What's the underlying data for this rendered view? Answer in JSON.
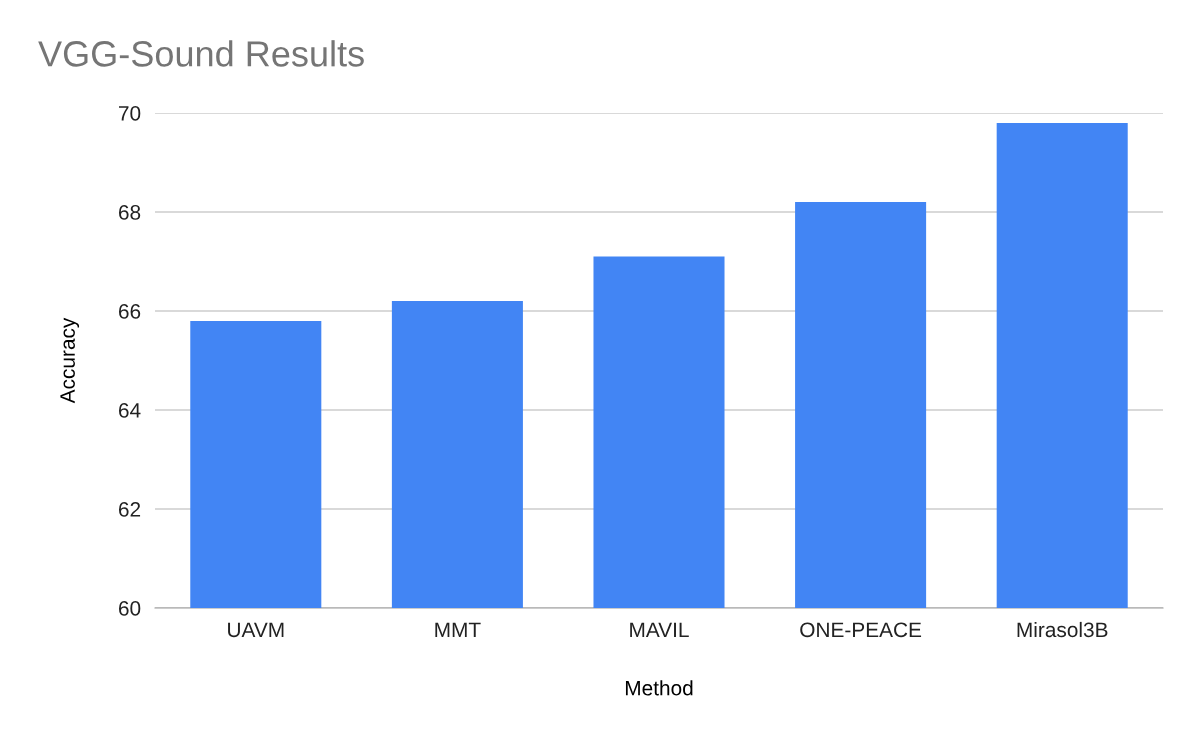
{
  "chart_data": {
    "type": "bar",
    "title": "VGG-Sound Results",
    "xlabel": "Method",
    "ylabel": "Accuracy",
    "categories": [
      "UAVM",
      "MMT",
      "MAVIL",
      "ONE-PEACE",
      "Mirasol3B"
    ],
    "values": [
      65.8,
      66.2,
      67.1,
      68.2,
      69.8
    ],
    "color": "#4285f4",
    "ylim": [
      60,
      70
    ],
    "yticks": [
      60,
      62,
      64,
      66,
      68,
      70
    ],
    "grid": "y"
  }
}
